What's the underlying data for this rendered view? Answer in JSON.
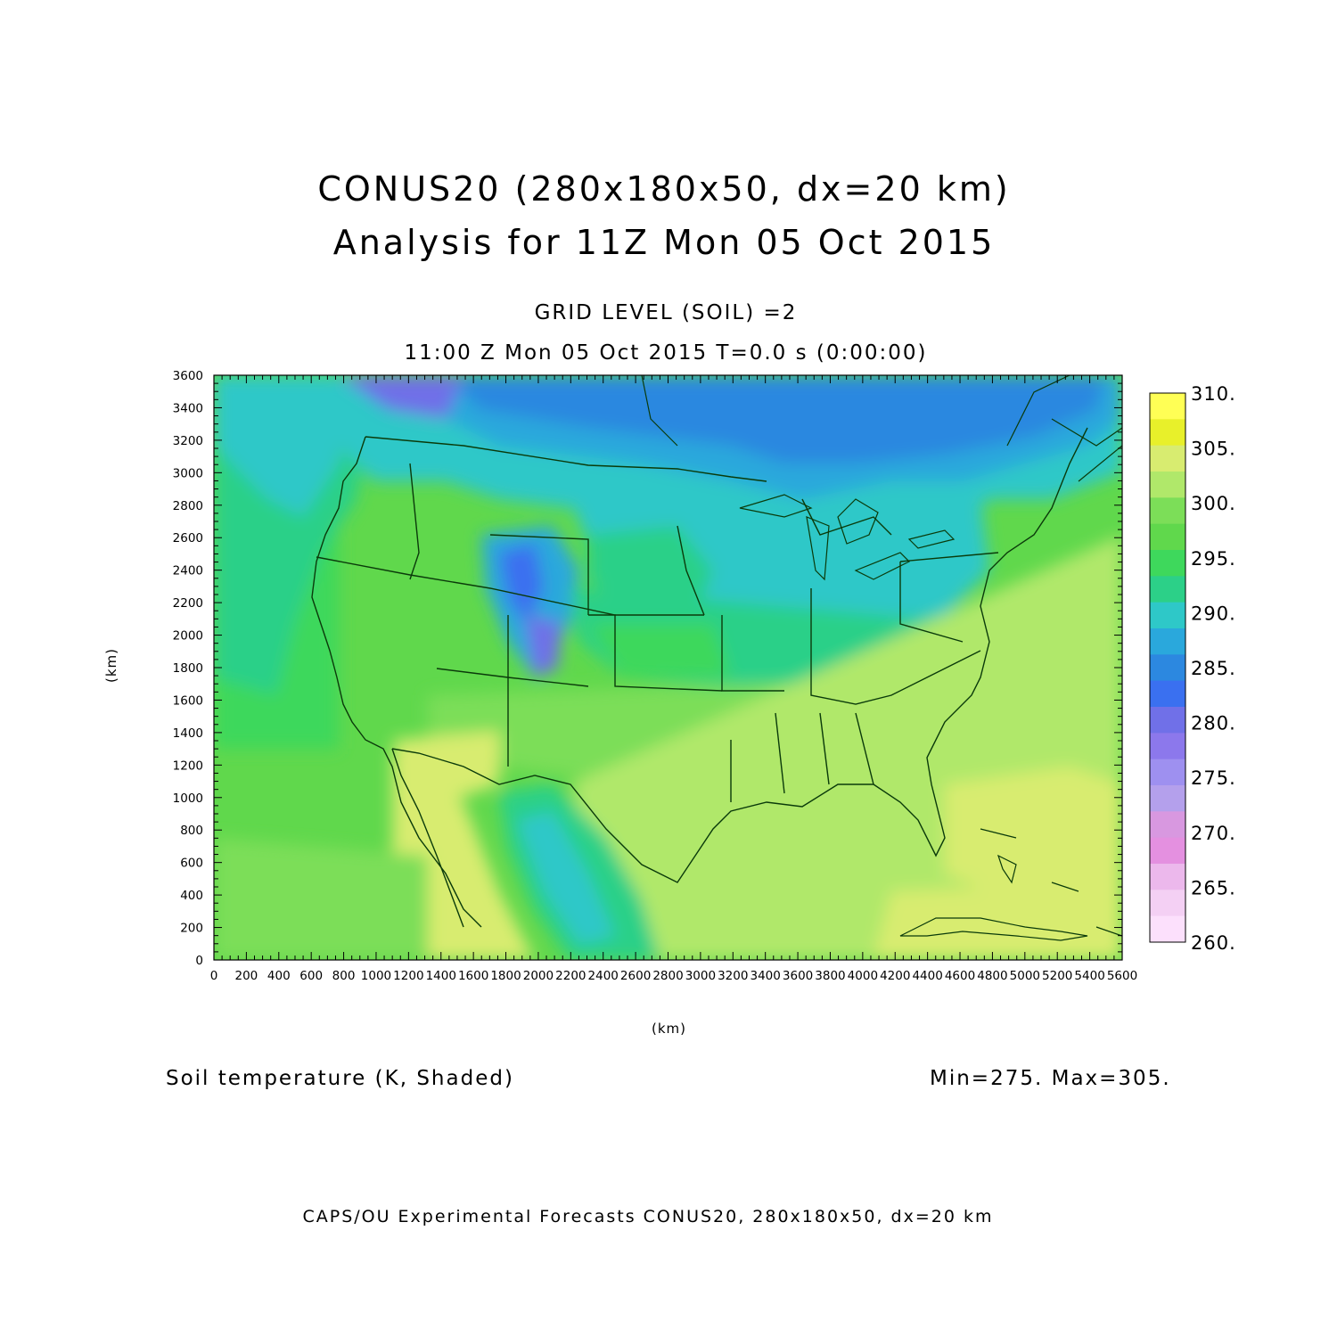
{
  "header": {
    "title_line1": "CONUS20 (280x180x50, dx=20 km)",
    "title_line2": "Analysis for 11Z Mon 05 Oct 2015",
    "subtitle": "GRID LEVEL (SOIL) =2",
    "time_line": "11:00 Z Mon 05 Oct 2015    T=0.0 s (0:00:00)"
  },
  "axes": {
    "x_unit_label": "(km)",
    "y_unit_label": "(km)",
    "x_ticks": [
      "0",
      "200",
      "400",
      "600",
      "800",
      "1000",
      "1200",
      "1400",
      "1600",
      "1800",
      "2000",
      "2200",
      "2400",
      "2600",
      "2800",
      "3000",
      "3200",
      "3400",
      "3600",
      "3800",
      "4000",
      "4200",
      "4400",
      "4600",
      "4800",
      "5000",
      "5200",
      "5400",
      "5600"
    ],
    "y_ticks": [
      "0",
      "200",
      "400",
      "600",
      "800",
      "1000",
      "1200",
      "1400",
      "1600",
      "1800",
      "2000",
      "2200",
      "2400",
      "2600",
      "2800",
      "3000",
      "3200",
      "3400",
      "3600"
    ],
    "xlim": [
      0,
      5600
    ],
    "ylim": [
      0,
      3600
    ]
  },
  "colorbar": {
    "labels": [
      "310.",
      "305.",
      "300.",
      "295.",
      "290.",
      "285.",
      "280.",
      "275.",
      "270.",
      "265.",
      "260."
    ],
    "colors_top_to_bottom": [
      "#ffff55",
      "#e8f02a",
      "#d8ec70",
      "#b0e86a",
      "#7cde58",
      "#60d84c",
      "#3ed85c",
      "#2cd088",
      "#2ec8c8",
      "#2aa8dc",
      "#2c88e0",
      "#3a70f0",
      "#7070e8",
      "#8c78ec",
      "#9e90f0",
      "#b4a0ec",
      "#d898e0",
      "#e490e0",
      "#ecb8ec",
      "#f4d0f4",
      "#fce0fc"
    ]
  },
  "annotations": {
    "field_label": "Soil temperature (K, Shaded)",
    "minmax": "Min=275.  Max=305."
  },
  "footer": "CAPS/OU Experimental Forecasts  CONUS20, 280x180x50, dx=20 km",
  "map_colors": {
    "ocean_pacific": "#60d84c",
    "ocean_pacific_near": "#3ed85c",
    "gulf": "#b0e86a",
    "atlantic": "#b0e86a",
    "mexico_hot": "#d8ec70",
    "north_cool": "#2aa8dc",
    "canada_cold": "#2c88e0",
    "mid": "#2ec8c8",
    "plains": "#2cd088",
    "south": "#7cde58",
    "boundaries": "#0a3a0a"
  }
}
